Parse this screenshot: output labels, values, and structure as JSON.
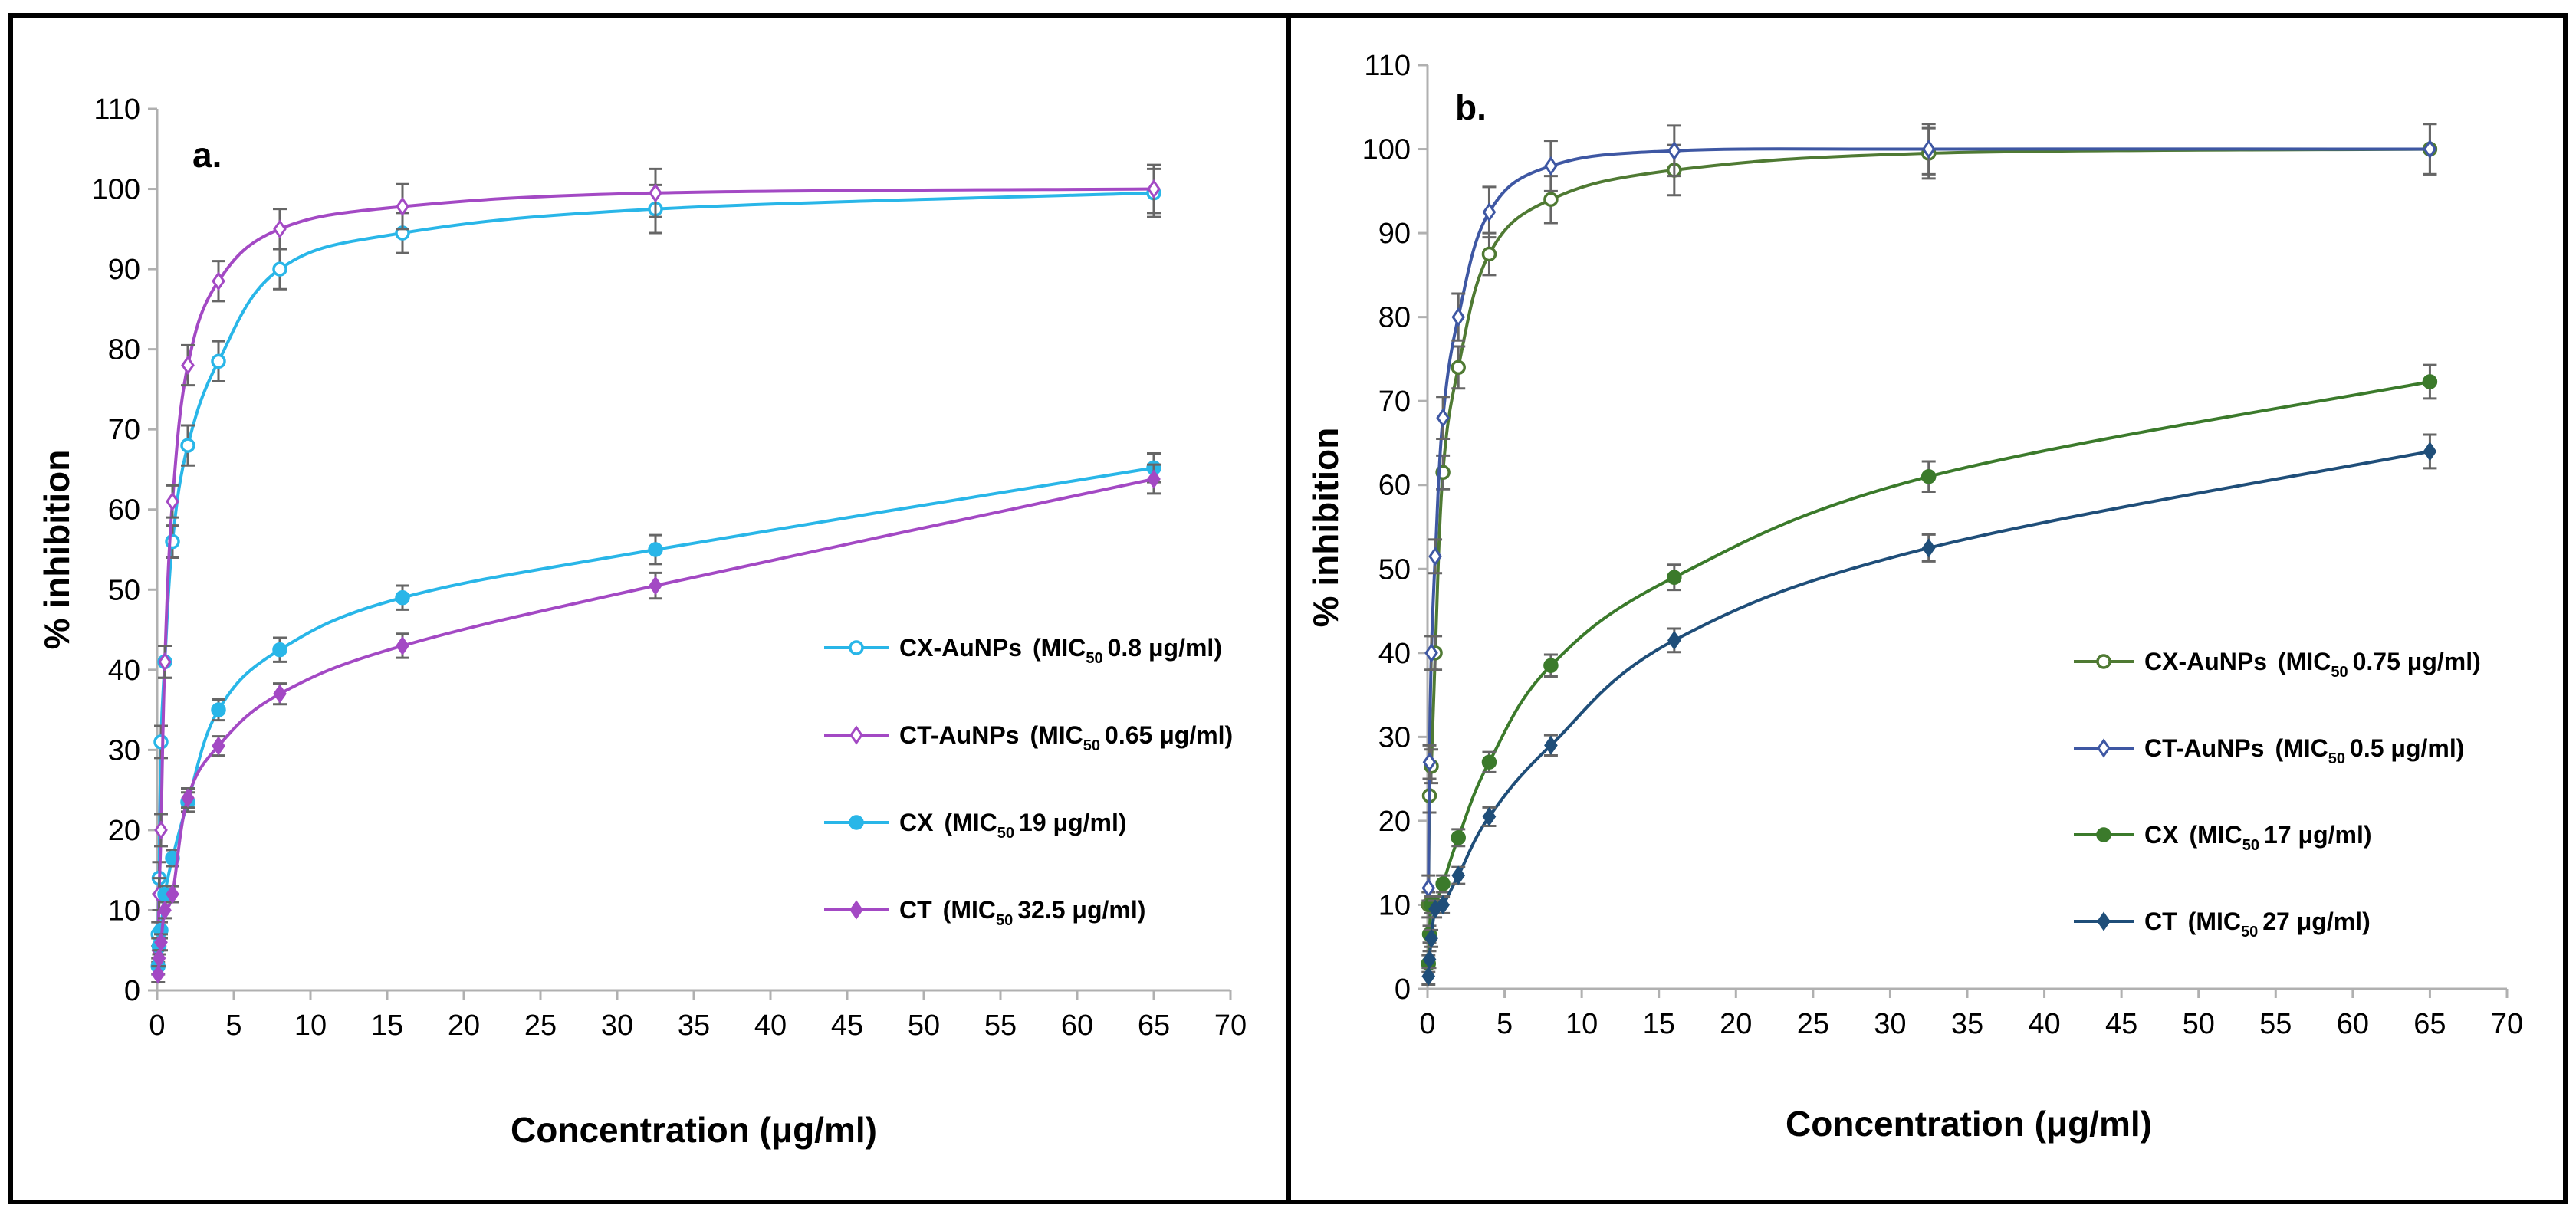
{
  "chart_data": [
    {
      "type": "line",
      "panel_label": "a.",
      "xlabel": "Concentration (μg/ml)",
      "ylabel": "% inhibition",
      "xlim": [
        0,
        70
      ],
      "ylim": [
        0,
        110
      ],
      "xticks": [
        0,
        5,
        10,
        15,
        20,
        25,
        30,
        35,
        40,
        45,
        50,
        55,
        60,
        65,
        70
      ],
      "yticks": [
        0,
        10,
        20,
        30,
        40,
        50,
        60,
        70,
        80,
        90,
        100,
        110
      ],
      "legend_position": "center-right",
      "series": [
        {
          "name": "CX-AuNPs",
          "mic_prefix": "(MIC",
          "mic_sub": "50",
          "mic_value": "0.8 μg/ml)",
          "color": "#29b6e8",
          "marker": "circle-open",
          "x": [
            0.0625,
            0.125,
            0.25,
            0.5,
            1,
            2,
            4,
            8,
            16,
            32.5,
            65
          ],
          "y": [
            7,
            14,
            31,
            41,
            56,
            68,
            78.5,
            90,
            94.5,
            97.5,
            99.5
          ],
          "err": [
            1.5,
            2,
            2,
            2,
            2,
            2.5,
            2.5,
            2.5,
            2.5,
            3,
            3
          ]
        },
        {
          "name": "CT-AuNPs",
          "mic_prefix": "(MIC",
          "mic_sub": "50",
          "mic_value": "0.65 μg/ml)",
          "color": "#a349c4",
          "marker": "diamond-open",
          "x": [
            0.0625,
            0.125,
            0.25,
            0.5,
            1,
            2,
            4,
            8,
            16,
            32.5,
            65
          ],
          "y": [
            5,
            12,
            20,
            41,
            61,
            78,
            88.5,
            95,
            97.8,
            99.5,
            100
          ],
          "err": [
            1.5,
            2,
            2,
            2,
            2,
            2.5,
            2.5,
            2.5,
            2.8,
            3,
            3
          ]
        },
        {
          "name": "CX",
          "mic_prefix": "(MIC",
          "mic_sub": "50",
          "mic_value": "19 μg/ml)",
          "color": "#29b6e8",
          "marker": "circle-filled",
          "x": [
            0.0625,
            0.125,
            0.25,
            0.5,
            1,
            2,
            4,
            8,
            16,
            32.5,
            65
          ],
          "y": [
            3,
            5.5,
            7.5,
            12,
            16.5,
            23.5,
            35,
            42.5,
            49,
            55,
            65.2
          ],
          "err": [
            1,
            1,
            1,
            1,
            1,
            1.2,
            1.3,
            1.5,
            1.5,
            1.8,
            1.8
          ]
        },
        {
          "name": "CT",
          "mic_prefix": "(MIC",
          "mic_sub": "50",
          "mic_value": "32.5 μg/ml)",
          "color": "#a349c4",
          "marker": "diamond-filled",
          "x": [
            0.0625,
            0.125,
            0.25,
            0.5,
            1,
            2,
            4,
            8,
            16,
            32.5,
            65
          ],
          "y": [
            2,
            4,
            6,
            10,
            12,
            24,
            30.5,
            37,
            43,
            50.5,
            63.8
          ],
          "err": [
            1,
            1,
            1,
            1,
            1,
            1.2,
            1.2,
            1.3,
            1.5,
            1.6,
            1.8
          ]
        }
      ]
    },
    {
      "type": "line",
      "panel_label": "b.",
      "xlabel": "Concentration (μg/ml)",
      "ylabel": "% inhibition",
      "xlim": [
        0,
        70
      ],
      "ylim": [
        0,
        110
      ],
      "xticks": [
        0,
        5,
        10,
        15,
        20,
        25,
        30,
        35,
        40,
        45,
        50,
        55,
        60,
        65,
        70
      ],
      "yticks": [
        0,
        10,
        20,
        30,
        40,
        50,
        60,
        70,
        80,
        90,
        100,
        110
      ],
      "legend_position": "center-right",
      "series": [
        {
          "name": "CX-AuNPs",
          "mic_prefix": "(MIC",
          "mic_sub": "50",
          "mic_value": "0.75 μg/ml)",
          "color": "#4f7a33",
          "marker": "circle-open",
          "x": [
            0.0625,
            0.125,
            0.25,
            0.5,
            1,
            2,
            4,
            8,
            16,
            32.5,
            65
          ],
          "y": [
            10,
            23,
            26.5,
            40,
            61.5,
            74,
            87.5,
            94,
            97.5,
            99.5,
            100
          ],
          "err": [
            1.5,
            2,
            2,
            2,
            2,
            2.5,
            2.5,
            2.8,
            3,
            3,
            3
          ]
        },
        {
          "name": "CT-AuNPs",
          "mic_prefix": "(MIC",
          "mic_sub": "50",
          "mic_value": "0.5 μg/ml)",
          "color": "#3e57a3",
          "marker": "diamond-open",
          "x": [
            0.0625,
            0.125,
            0.25,
            0.5,
            1,
            2,
            4,
            8,
            16,
            32.5,
            65
          ],
          "y": [
            12,
            27,
            40,
            51.5,
            68,
            80,
            92.5,
            98,
            99.8,
            100,
            100
          ],
          "err": [
            1.5,
            2,
            2,
            2,
            2.5,
            2.8,
            3,
            3,
            3,
            3,
            3
          ]
        },
        {
          "name": "CX",
          "mic_prefix": "(MIC",
          "mic_sub": "50",
          "mic_value": "17 μg/ml)",
          "color": "#3b7a2b",
          "marker": "circle-filled",
          "x": [
            0.0625,
            0.125,
            0.25,
            0.5,
            1,
            2,
            4,
            8,
            16,
            32.5,
            65
          ],
          "y": [
            3,
            6.5,
            10,
            10,
            12.5,
            18,
            27,
            38.5,
            49,
            61,
            72.3
          ],
          "err": [
            1,
            1,
            1,
            1,
            1,
            1,
            1.2,
            1.3,
            1.5,
            1.8,
            2
          ]
        },
        {
          "name": "CT",
          "mic_prefix": "(MIC",
          "mic_sub": "50",
          "mic_value": "27 μg/ml)",
          "color": "#1f4e79",
          "marker": "diamond-filled",
          "x": [
            0.0625,
            0.125,
            0.25,
            0.5,
            1,
            2,
            4,
            8,
            16,
            32.5,
            65
          ],
          "y": [
            1.5,
            3.5,
            6,
            9.5,
            10,
            13.5,
            20.5,
            29,
            41.5,
            52.5,
            64
          ],
          "err": [
            1,
            1,
            1,
            1,
            1,
            1,
            1.1,
            1.2,
            1.4,
            1.6,
            2
          ]
        }
      ]
    }
  ]
}
